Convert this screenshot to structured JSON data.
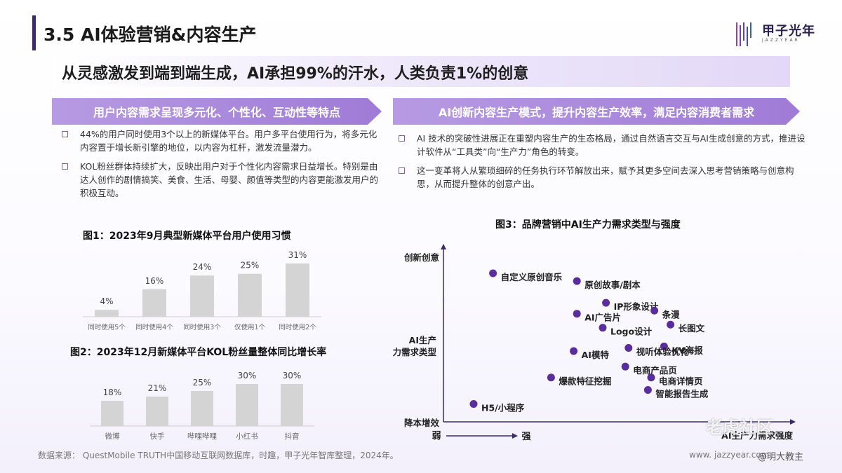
{
  "header": {
    "title": "3.5 AI体验营销&内容生产",
    "logo_name": "甲子光年",
    "logo_sub": "JAZZYEAR"
  },
  "subtitle": "从灵感激发到端到端生成，AI承担99%的汗水，人类负责1%的创意",
  "left": {
    "banner": "用户内容需求呈现多元化、个性化、互动性等特点",
    "bullets": [
      "44%的用户同时使用3个以上的新媒体平台。用户多平台使用行为，将多元化内容置于增长新引擎的地位，以内容为杠杆，激发流量潜力。",
      "KOL粉丝群体持续扩大，反映出用户对于个性化内容需求日益增长。特别是由达人创作的剧情搞笑、美食、生活、母婴、颜值等类型的内容更能激发用户的积极互动。"
    ]
  },
  "right": {
    "banner": "AI创新内容生产模式，提升内容生产效率，满足内容消费者需求",
    "bullets": [
      "AI 技术的突破性进展正在重塑内容生产的生态格局，通过自然语言交互与AI生成创意的方式，推进设计软件从“工具类”向“生产力”角色的转变。",
      "这一变革将人从繁琐细碎的任务执行环节解放出来，赋予其更多空间去深入思考营销策略与创意构思，从而提升整体的创意产出。"
    ]
  },
  "chart_data": [
    {
      "type": "bar",
      "title": "图1：2023年9月典型新媒体平台用户使用习惯",
      "categories": [
        "同时使用5个",
        "同时使用4个",
        "同时使用3个",
        "仅使用1个",
        "同时使用2个"
      ],
      "values": [
        4,
        16,
        24,
        25,
        31
      ],
      "labels": [
        "4%",
        "16%",
        "24%",
        "25%",
        "31%"
      ],
      "ylim": [
        0,
        31
      ],
      "color": "#d4d4d4"
    },
    {
      "type": "bar",
      "title": "图2：2023年12月新媒体平台KOL粉丝量整体同比增长率",
      "categories": [
        "微博",
        "快手",
        "哔哩哔哩",
        "小红书",
        "抖音"
      ],
      "values": [
        18,
        21,
        25,
        30,
        30
      ],
      "labels": [
        "18%",
        "21%",
        "25%",
        "30%",
        "30%"
      ],
      "ylim": [
        0,
        30
      ],
      "color": "#d4d4d4"
    },
    {
      "type": "scatter",
      "title": "图3：品牌营销中AI生产力需求类型与强度",
      "x_axis_end": "AI生产力需求强度",
      "x_weak": "弱",
      "x_strong": "强",
      "y_axis_top": "创新创意",
      "y_axis_mid": "AI生产力需求类型",
      "y_axis_bottom": "降本增效",
      "xlim": [
        0,
        100
      ],
      "ylim": [
        0,
        100
      ],
      "color": "#5a2d9c",
      "points": [
        {
          "label": "自定义原创音乐",
          "x": 11,
          "y": 91
        },
        {
          "label": "原创故事/剧本",
          "x": 37,
          "y": 86
        },
        {
          "label": "IP形象设计",
          "x": 46,
          "y": 72
        },
        {
          "label": "AI广告片",
          "x": 37,
          "y": 65
        },
        {
          "label": "条漫",
          "x": 61,
          "y": 67
        },
        {
          "label": "长图文",
          "x": 66,
          "y": 58
        },
        {
          "label": "Logo设计",
          "x": 45,
          "y": 56
        },
        {
          "label": "KV海报",
          "x": 64,
          "y": 44
        },
        {
          "label": "AI模特",
          "x": 36,
          "y": 41
        },
        {
          "label": "视听体验优化",
          "x": 53,
          "y": 43
        },
        {
          "label": "电商产品页",
          "x": 52,
          "y": 31
        },
        {
          "label": "电商详情页",
          "x": 60,
          "y": 24
        },
        {
          "label": "爆款特征挖掘",
          "x": 29,
          "y": 24
        },
        {
          "label": "智能报告生成",
          "x": 59,
          "y": 16
        },
        {
          "label": "H5/小程序",
          "x": 5,
          "y": 7
        }
      ]
    }
  ],
  "source": "数据来源：  QuestMobile TRUTH中国移动互联网数据库，时趣，甲子光年智库整理，2024年。",
  "url": "www. jazzyear.com",
  "watermark": "老虎社区",
  "watermark_handle": "@明大教主"
}
